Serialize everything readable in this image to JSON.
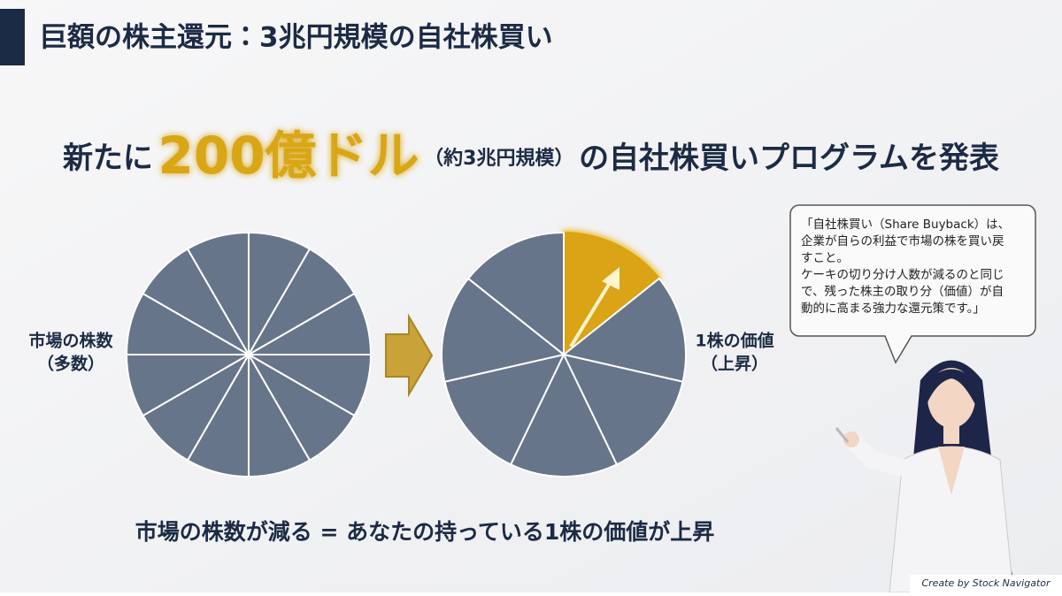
{
  "header": {
    "title": "巨額の株主還元：3兆円規模の自社株買い"
  },
  "headline": {
    "prefix": "新たに",
    "amount": "200億ドル",
    "note": "（約3兆円規模）",
    "suffix": "の自社株買いプログラムを発表"
  },
  "left_label": [
    "市場の株数",
    "（多数）"
  ],
  "right_label": [
    "1株の価値",
    "（上昇）"
  ],
  "bubble": [
    "「自社株買い（Share Buyback）は、",
    "企業が自らの利益で市場の株を買い戻",
    "すこと。",
    "ケーキの切り分け人数が減るのと同じ",
    "で、残った株主の取り分（価値）が自",
    "動的に高まる強力な還元策です。」"
  ],
  "caption": "市場の株数が減る = あなたの持っている1株の価値が上昇",
  "credit": "Create by Stock Navigator"
}
